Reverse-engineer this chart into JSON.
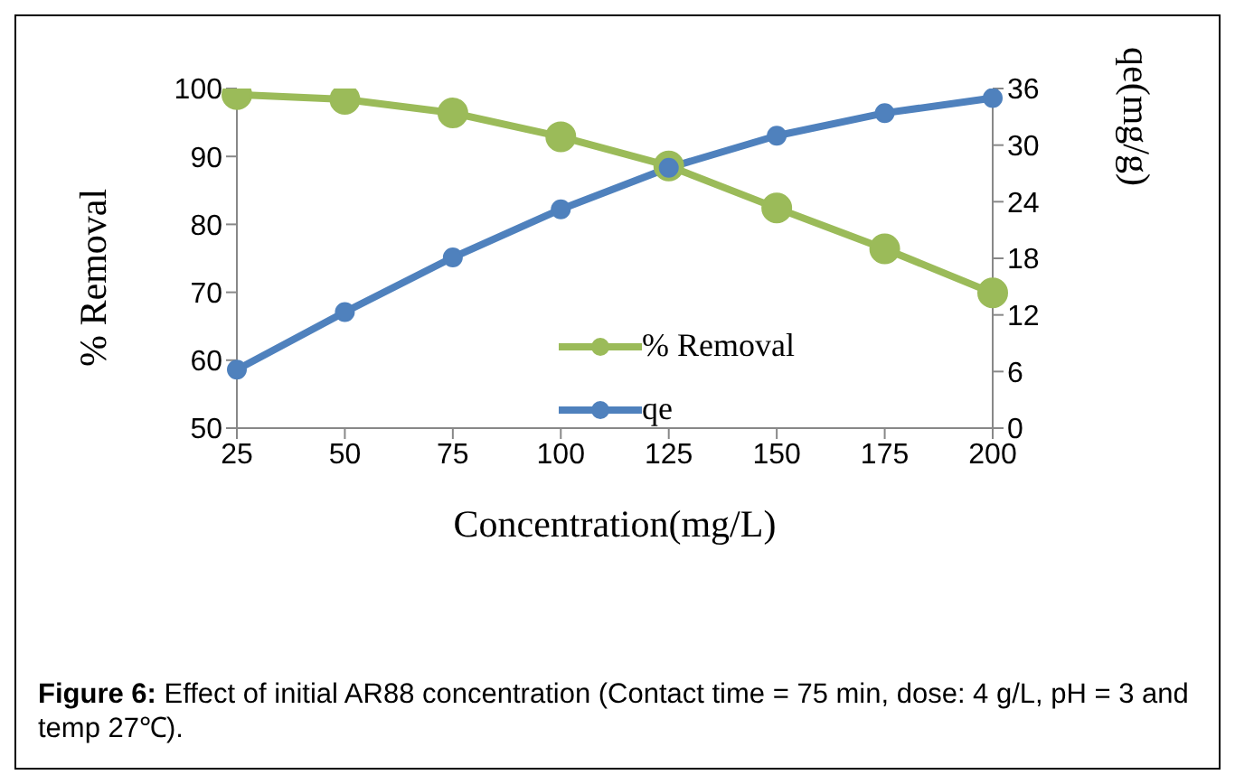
{
  "chart_data": {
    "type": "line",
    "xlabel": "Concentration(mg/L)",
    "ylabel": "% Removal",
    "y2label": "qe(mg/g)",
    "categories": [
      "25",
      "50",
      "75",
      "100",
      "125",
      "150",
      "175",
      "200"
    ],
    "series": [
      {
        "name": "% Removal",
        "color": "#9bbb59",
        "values": [
          99.1,
          98.4,
          96.4,
          92.9,
          88.6,
          82.4,
          76.4,
          69.9
        ]
      },
      {
        "name": "qe",
        "color": "#4f81bd",
        "axis": "y2",
        "values": [
          6.2,
          12.3,
          18.1,
          23.2,
          27.6,
          31.0,
          33.4,
          35.0
        ]
      }
    ],
    "ylim": [
      50,
      100
    ],
    "yticks": [
      50,
      60,
      70,
      80,
      90,
      100
    ],
    "y2lim": [
      0,
      36
    ],
    "y2ticks": [
      0,
      6,
      12,
      18,
      24,
      30,
      36
    ],
    "marker": "circle",
    "grid": false,
    "legend": "center",
    "annotations": [
      "Figure 6: Effect of initial AR88 concentration (Contact time = 75 min, dose: 4 g/L, pH = 3 and temp 27℃)."
    ]
  }
}
